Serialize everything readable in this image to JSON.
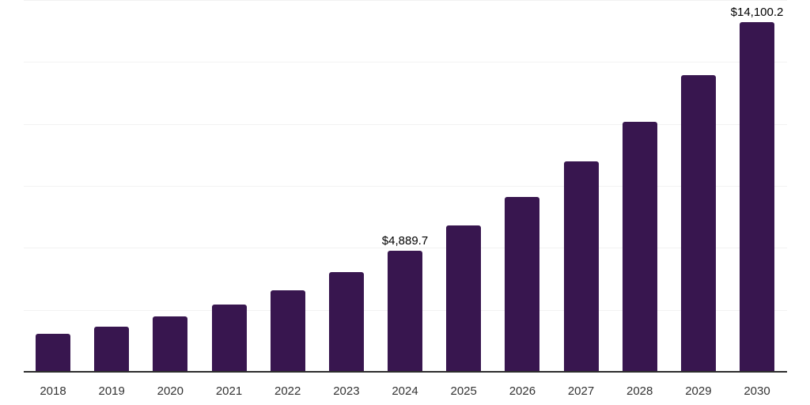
{
  "chart_data": {
    "type": "bar",
    "categories": [
      "2018",
      "2019",
      "2020",
      "2021",
      "2022",
      "2023",
      "2024",
      "2025",
      "2026",
      "2027",
      "2028",
      "2029",
      "2030"
    ],
    "values": [
      1530,
      1820,
      2220,
      2700,
      3300,
      4020,
      4889.7,
      5900,
      7060,
      8490,
      10080,
      11970,
      14100.2
    ],
    "title": "",
    "xlabel": "",
    "ylabel": "",
    "ylim": [
      0,
      15000
    ],
    "gridline_step": 2500,
    "grid": true,
    "legend_position": "none",
    "y_axis_tick_labels_visible": false,
    "data_labels": [
      {
        "category": "2024",
        "text": "$4,889.7"
      },
      {
        "category": "2030",
        "text": "$14,100.2"
      }
    ],
    "colors": {
      "bar": "#38164F",
      "axis_line": "#2d2d2d",
      "gridline": "#f2f2f2",
      "data_label": "#000000",
      "tick_label": "#333333",
      "background": "#ffffff"
    }
  }
}
